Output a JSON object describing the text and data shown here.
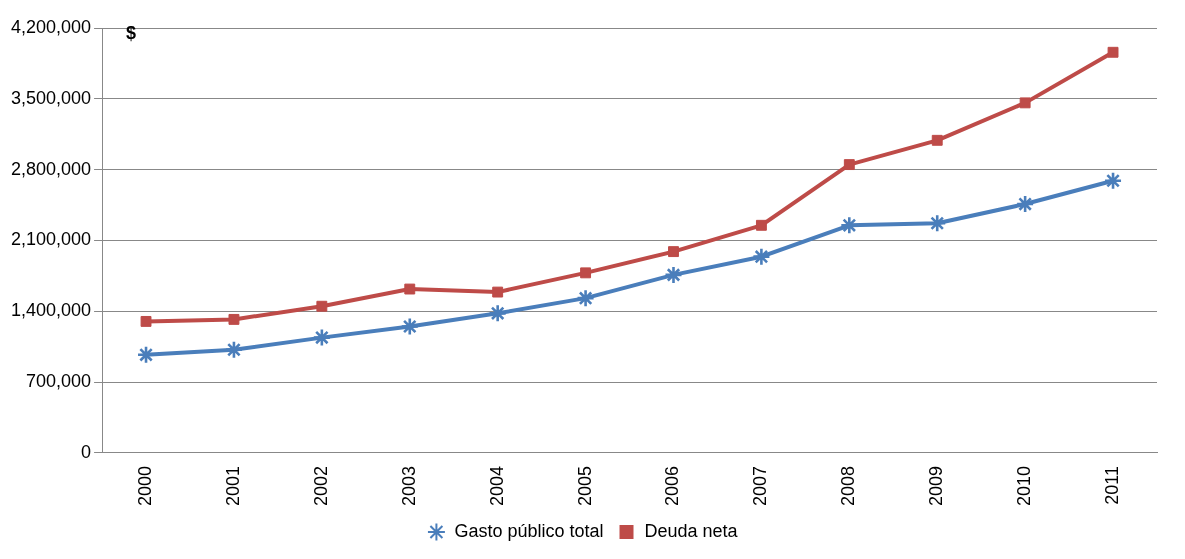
{
  "chart_data": {
    "type": "line",
    "ylabel": "$",
    "categories": [
      "2000",
      "2001",
      "2002",
      "2003",
      "2004",
      "2005",
      "2006",
      "2007",
      "2008",
      "2009",
      "2010",
      "2011"
    ],
    "series": [
      {
        "name": "Gasto público total",
        "color": "#4a7ebb",
        "marker": "star",
        "values": [
          970000,
          1020000,
          1140000,
          1250000,
          1380000,
          1530000,
          1760000,
          1940000,
          2250000,
          2270000,
          2460000,
          2690000
        ]
      },
      {
        "name": "Deuda neta",
        "color": "#be4b48",
        "marker": "square",
        "values": [
          1300000,
          1320000,
          1450000,
          1620000,
          1590000,
          1780000,
          1990000,
          2250000,
          2850000,
          3090000,
          3460000,
          3960000
        ]
      }
    ],
    "ylim": [
      0,
      4200000
    ],
    "yticks": [
      {
        "value": 0,
        "label": "0"
      },
      {
        "value": 700000,
        "label": "700,000"
      },
      {
        "value": 1400000,
        "label": "1,400,000"
      },
      {
        "value": 2100000,
        "label": "2,100,000"
      },
      {
        "value": 2800000,
        "label": "2,800,000"
      },
      {
        "value": 3500000,
        "label": "3,500,000"
      },
      {
        "value": 4200000,
        "label": "4,200,000"
      }
    ],
    "grid": "y",
    "legend": "bottom"
  }
}
